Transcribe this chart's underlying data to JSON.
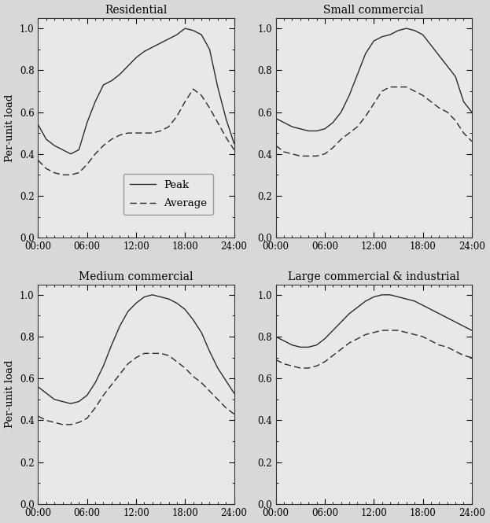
{
  "titles": [
    "Residential",
    "Small commercial",
    "Medium commercial",
    "Large commercial & industrial"
  ],
  "ylabel": "Per-unit load",
  "xlabel_ticks": [
    0,
    6,
    12,
    18,
    24
  ],
  "xlabel_labels": [
    "00:00",
    "06:00",
    "12:00",
    "18:00",
    "24:00"
  ],
  "ylim": [
    0.0,
    1.05
  ],
  "yticks": [
    0.0,
    0.2,
    0.4,
    0.6,
    0.8,
    1.0
  ],
  "legend_labels": [
    "Peak",
    "Average"
  ],
  "fig_facecolor": "#d8d8d8",
  "axes_facecolor": "#e8e8e8",
  "line_color": "#2a2a2a",
  "residential_peak": [
    0.54,
    0.47,
    0.44,
    0.42,
    0.4,
    0.42,
    0.55,
    0.65,
    0.73,
    0.75,
    0.78,
    0.82,
    0.86,
    0.89,
    0.91,
    0.93,
    0.95,
    0.97,
    1.0,
    0.99,
    0.97,
    0.9,
    0.72,
    0.57,
    0.45
  ],
  "residential_average": [
    0.37,
    0.33,
    0.31,
    0.3,
    0.3,
    0.31,
    0.35,
    0.4,
    0.44,
    0.47,
    0.49,
    0.5,
    0.5,
    0.5,
    0.5,
    0.51,
    0.53,
    0.58,
    0.65,
    0.71,
    0.68,
    0.62,
    0.55,
    0.48,
    0.42
  ],
  "small_com_peak": [
    0.57,
    0.55,
    0.53,
    0.52,
    0.51,
    0.51,
    0.52,
    0.55,
    0.6,
    0.68,
    0.78,
    0.88,
    0.94,
    0.96,
    0.97,
    0.99,
    1.0,
    0.99,
    0.97,
    0.92,
    0.87,
    0.82,
    0.77,
    0.65,
    0.6
  ],
  "small_com_average": [
    0.44,
    0.41,
    0.4,
    0.39,
    0.39,
    0.39,
    0.4,
    0.43,
    0.47,
    0.5,
    0.53,
    0.58,
    0.64,
    0.7,
    0.72,
    0.72,
    0.72,
    0.7,
    0.68,
    0.65,
    0.62,
    0.6,
    0.56,
    0.5,
    0.46
  ],
  "medium_com_peak": [
    0.56,
    0.53,
    0.5,
    0.49,
    0.48,
    0.49,
    0.52,
    0.58,
    0.66,
    0.76,
    0.85,
    0.92,
    0.96,
    0.99,
    1.0,
    0.99,
    0.98,
    0.96,
    0.93,
    0.88,
    0.82,
    0.73,
    0.65,
    0.59,
    0.53
  ],
  "medium_com_average": [
    0.42,
    0.4,
    0.39,
    0.38,
    0.38,
    0.39,
    0.41,
    0.46,
    0.52,
    0.57,
    0.62,
    0.67,
    0.7,
    0.72,
    0.72,
    0.72,
    0.71,
    0.68,
    0.65,
    0.61,
    0.58,
    0.54,
    0.5,
    0.46,
    0.43
  ],
  "large_com_peak": [
    0.8,
    0.78,
    0.76,
    0.75,
    0.75,
    0.76,
    0.79,
    0.83,
    0.87,
    0.91,
    0.94,
    0.97,
    0.99,
    1.0,
    1.0,
    0.99,
    0.98,
    0.97,
    0.95,
    0.93,
    0.91,
    0.89,
    0.87,
    0.85,
    0.83
  ],
  "large_com_average": [
    0.69,
    0.67,
    0.66,
    0.65,
    0.65,
    0.66,
    0.68,
    0.71,
    0.74,
    0.77,
    0.79,
    0.81,
    0.82,
    0.83,
    0.83,
    0.83,
    0.82,
    0.81,
    0.8,
    0.78,
    0.76,
    0.75,
    0.73,
    0.71,
    0.7
  ]
}
